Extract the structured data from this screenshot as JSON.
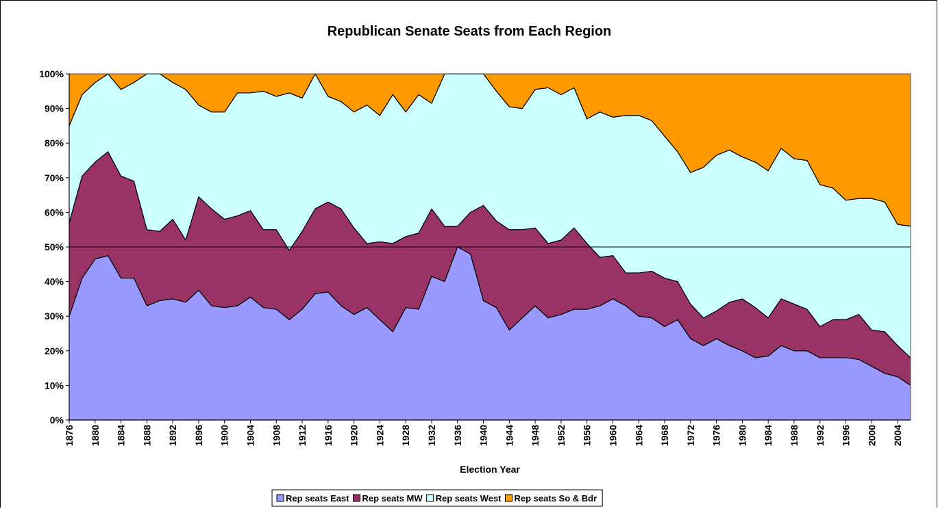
{
  "chart_data": {
    "type": "stacked_area",
    "title": "Republican Senate Seats from Each Region",
    "x_label": "Election Year",
    "x": [
      1876,
      1878,
      1880,
      1882,
      1884,
      1886,
      1888,
      1890,
      1892,
      1894,
      1896,
      1898,
      1900,
      1902,
      1904,
      1906,
      1908,
      1910,
      1912,
      1914,
      1916,
      1918,
      1920,
      1922,
      1924,
      1926,
      1928,
      1930,
      1932,
      1934,
      1936,
      1938,
      1940,
      1942,
      1944,
      1946,
      1948,
      1950,
      1952,
      1954,
      1956,
      1958,
      1960,
      1962,
      1964,
      1966,
      1968,
      1970,
      1972,
      1974,
      1976,
      1978,
      1980,
      1982,
      1984,
      1986,
      1988,
      1990,
      1992,
      1994,
      1996,
      1998,
      2000,
      2002,
      2004,
      2006
    ],
    "xlim": [
      1876,
      2006
    ],
    "xticks": [
      1876,
      1880,
      1884,
      1888,
      1892,
      1896,
      1900,
      1904,
      1908,
      1912,
      1916,
      1920,
      1924,
      1928,
      1932,
      1936,
      1940,
      1944,
      1948,
      1952,
      1956,
      1960,
      1964,
      1968,
      1972,
      1976,
      1980,
      1984,
      1988,
      1992,
      1996,
      2000,
      2004
    ],
    "ylim": [
      0,
      100
    ],
    "yticks": [
      {
        "value": 0,
        "label": "0%"
      },
      {
        "value": 10,
        "label": "10%"
      },
      {
        "value": 20,
        "label": "20%"
      },
      {
        "value": 30,
        "label": "30%"
      },
      {
        "value": 40,
        "label": "40%"
      },
      {
        "value": 50,
        "label": "50%"
      },
      {
        "value": 60,
        "label": "60%"
      },
      {
        "value": 70,
        "label": "70%"
      },
      {
        "value": 80,
        "label": "80%"
      },
      {
        "value": 90,
        "label": "90%"
      },
      {
        "value": 100,
        "label": "100%"
      }
    ],
    "reference_line": 50,
    "legend": "bottom",
    "series": [
      {
        "name": "Rep seats East",
        "color": "#9999ff",
        "values": [
          30,
          41,
          46.5,
          47.5,
          41,
          41,
          33,
          34.5,
          35,
          34,
          37.5,
          33,
          32.5,
          33,
          35.5,
          32.5,
          32,
          29,
          32,
          36.5,
          37,
          33,
          30.5,
          32.5,
          29,
          25.5,
          32.5,
          32,
          41.5,
          40,
          50,
          48,
          34.5,
          32.5,
          26,
          29.5,
          33,
          29.5,
          30.5,
          32,
          32,
          33,
          35,
          33,
          30,
          29.5,
          27,
          29,
          23.5,
          21.5,
          23.5,
          21.5,
          20,
          18,
          18.5,
          21.5,
          20,
          20,
          18,
          18,
          18,
          17.5,
          15.5,
          13.5,
          12.5,
          10
        ]
      },
      {
        "name": "Rep seats MW",
        "color": "#993366",
        "values": [
          27,
          29.5,
          28,
          30,
          29.5,
          28,
          22,
          20,
          23,
          18,
          27,
          28,
          25.5,
          26,
          25,
          22.5,
          23,
          20,
          22.5,
          24.5,
          26,
          28,
          25,
          18.5,
          22.5,
          25.5,
          20.5,
          22,
          19.5,
          16,
          6,
          12,
          27.5,
          25,
          29,
          25.5,
          22.5,
          21.5,
          21.5,
          23.5,
          19,
          14,
          12.5,
          9.5,
          12.5,
          13.5,
          14,
          11,
          10,
          8,
          8,
          12.5,
          15,
          14.5,
          11,
          13.5,
          13.5,
          12,
          9,
          11,
          11,
          13,
          10.5,
          12,
          9,
          8
        ]
      },
      {
        "name": "Rep seats West",
        "color": "#ccffff",
        "values": [
          28,
          23.5,
          23,
          22.5,
          25,
          28.5,
          45,
          45.5,
          39.5,
          43.5,
          26.5,
          28,
          31,
          35.5,
          34,
          40,
          38.5,
          45.5,
          38.5,
          39,
          30.5,
          31,
          33.5,
          40,
          36.5,
          43,
          36,
          40,
          30.5,
          44,
          44,
          40,
          38,
          37.5,
          35.5,
          35,
          40,
          45,
          42,
          40.5,
          36,
          42,
          40,
          45.5,
          45.5,
          43.5,
          41,
          37.5,
          38,
          43.5,
          45,
          44,
          41,
          42,
          42.5,
          43.5,
          42,
          43,
          41,
          38,
          34.5,
          33.5,
          38,
          37.5,
          35,
          38
        ]
      },
      {
        "name": "Rep seats So & Bdr",
        "color": "#ff9900",
        "values": [
          15,
          6,
          2.5,
          0,
          4.5,
          2.5,
          0,
          0,
          2.5,
          4.5,
          9,
          11,
          11,
          5.5,
          5.5,
          5,
          6.5,
          5.5,
          7,
          0,
          6.5,
          8,
          11,
          9,
          12,
          6,
          11,
          6,
          8.5,
          0,
          0,
          0,
          0,
          5,
          9.5,
          10,
          4.5,
          4,
          6,
          4,
          13,
          11,
          12.5,
          12,
          12,
          13.5,
          18,
          22.5,
          28.5,
          27,
          23.5,
          22,
          24,
          25.5,
          28,
          21.5,
          24.5,
          25,
          32,
          33,
          36.5,
          36,
          36,
          37,
          43.5,
          44
        ]
      }
    ]
  }
}
